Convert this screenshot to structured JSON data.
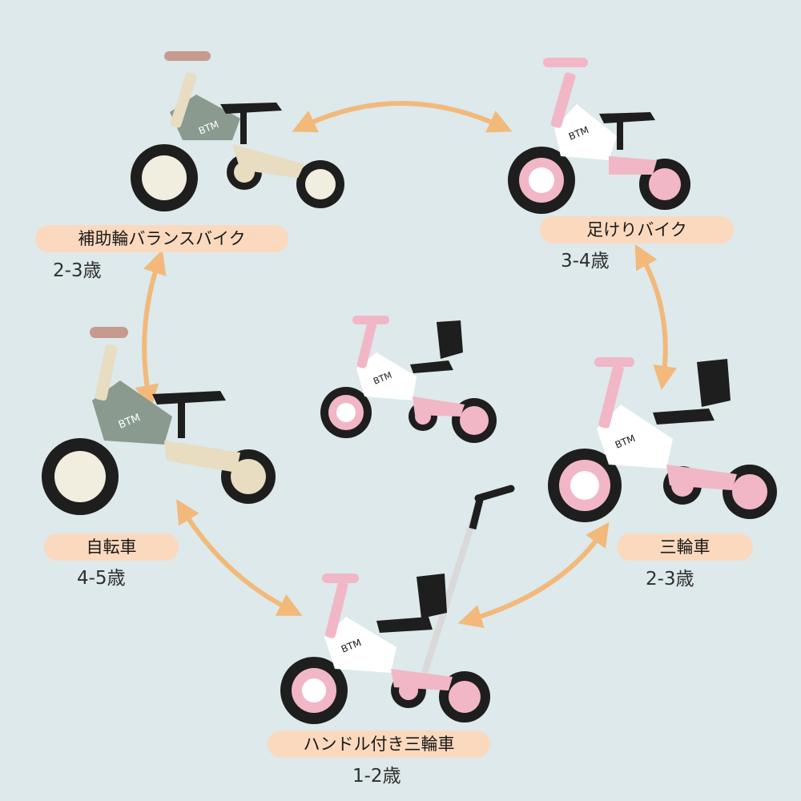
{
  "stages": [
    {
      "id": "assisted-balance-bike",
      "label": "補助輪バランスバイク",
      "age": "2-3歳",
      "color": "sage"
    },
    {
      "id": "kick-bike",
      "label": "足けりバイク",
      "age": "3-4歳",
      "color": "pink"
    },
    {
      "id": "tricycle",
      "label": "三輪車",
      "age": "2-3歳",
      "color": "pink"
    },
    {
      "id": "handle-tricycle",
      "label": "ハンドル付き三輪車",
      "age": "1-2歳",
      "color": "pink"
    },
    {
      "id": "bicycle",
      "label": "自転車",
      "age": "4-5歳",
      "color": "sage"
    }
  ],
  "brand": "BTM",
  "colors": {
    "background": "#dde9ea",
    "pill": "#fbd9bf",
    "arrow": "#f2b97a",
    "pink": "#f1b7c6",
    "sage": "#8a9a8f",
    "cream": "#e8dcc1"
  }
}
